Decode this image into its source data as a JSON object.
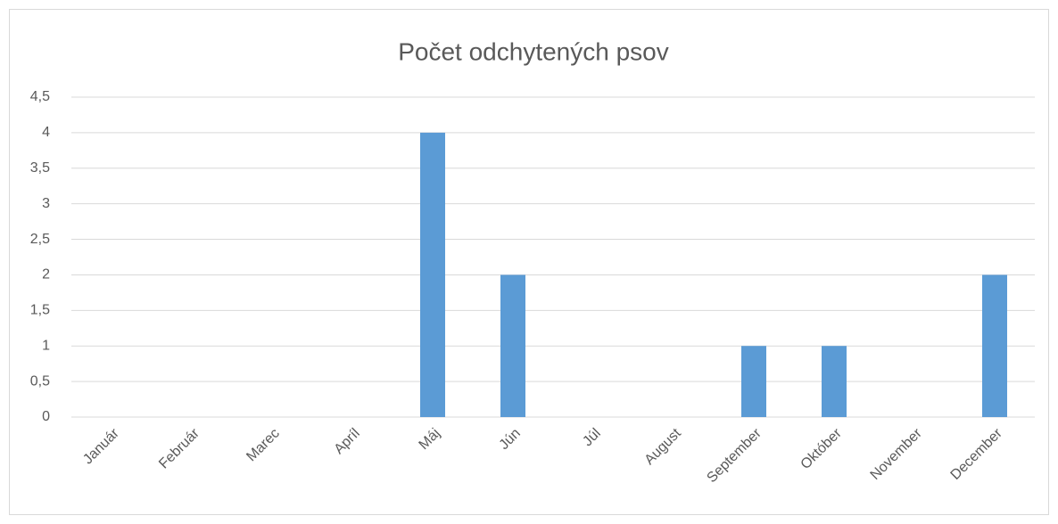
{
  "chart_data": {
    "type": "bar",
    "title": "Počet odchytených psov",
    "categories": [
      "Január",
      "Február",
      "Marec",
      "Apríl",
      "Máj",
      "Jún",
      "Júl",
      "August",
      "September",
      "Október",
      "November",
      "December"
    ],
    "values": [
      0,
      0,
      0,
      0,
      4,
      2,
      0,
      0,
      1,
      1,
      0,
      2
    ],
    "color": "#5b9bd5",
    "ylim": [
      0,
      4.5
    ],
    "yticks": [
      0,
      {
        "value": 0.5,
        "label": "0,5"
      },
      1,
      {
        "value": 1.5,
        "label": "1,5"
      },
      2,
      {
        "value": 2.5,
        "label": "2,5"
      },
      3,
      {
        "value": 3.5,
        "label": "3,5"
      },
      4,
      {
        "value": 4.5,
        "label": "4,5"
      }
    ],
    "grid": true
  }
}
